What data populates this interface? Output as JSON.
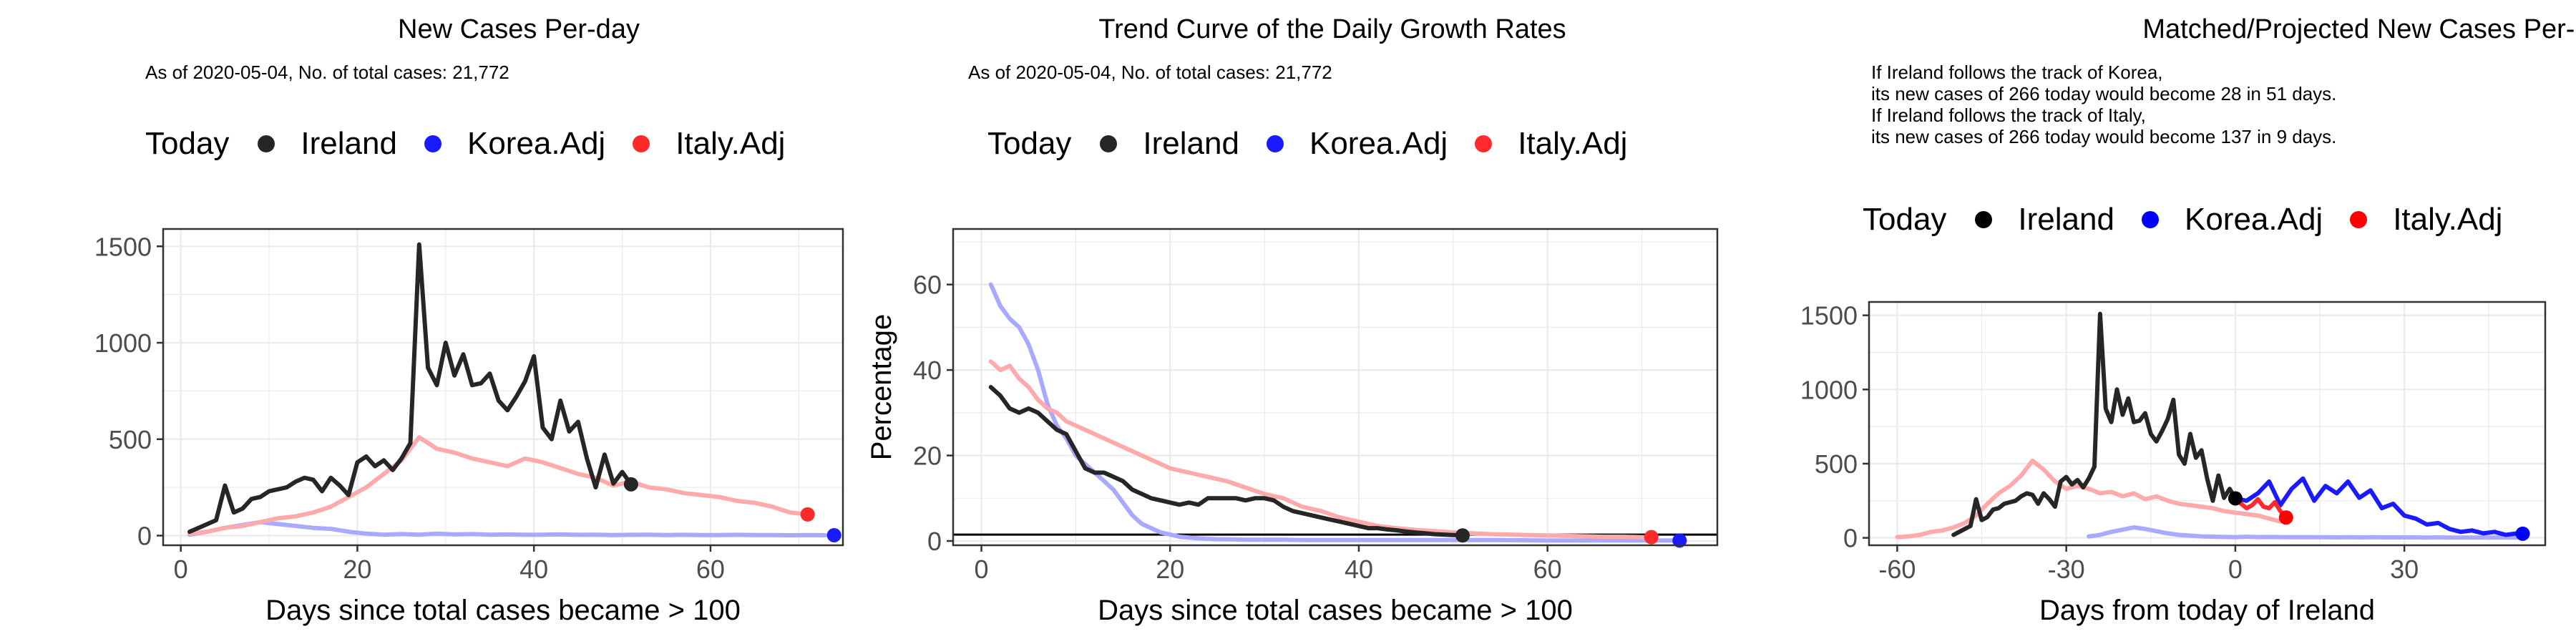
{
  "chart_data": [
    {
      "type": "line",
      "title": "New Cases Per-day",
      "subtitle": "As of 2020-05-04, No. of total cases: 21,772",
      "legend": {
        "title": "Today",
        "placement": "top",
        "items": [
          {
            "label": "Ireland",
            "color": "#262626"
          },
          {
            "label": "Korea.Adj",
            "color": "#1a1aff"
          },
          {
            "label": "Italy.Adj",
            "color": "#ff2a2a"
          }
        ]
      },
      "xlabel": "Days since total cases became > 100",
      "ylabel": "",
      "xlim": [
        -2,
        75
      ],
      "ylim": [
        -50,
        1590
      ],
      "xticks": [
        0,
        20,
        40,
        60
      ],
      "yticks": [
        0,
        500,
        1000,
        1500
      ],
      "grid": true,
      "series": [
        {
          "name": "Korea.Adj",
          "color": "#a9a9ff",
          "x": [
            1,
            3,
            5,
            7,
            9,
            11,
            13,
            15,
            17,
            19,
            21,
            23,
            25,
            27,
            29,
            31,
            33,
            35,
            37,
            39,
            41,
            43,
            45,
            47,
            49,
            51,
            53,
            55,
            57,
            59,
            61,
            63,
            65,
            67,
            69,
            71,
            73
          ],
          "y": [
            5,
            20,
            40,
            55,
            70,
            60,
            50,
            40,
            35,
            20,
            10,
            5,
            8,
            5,
            10,
            6,
            8,
            5,
            6,
            4,
            5,
            6,
            4,
            5,
            3,
            4,
            5,
            3,
            4,
            3,
            3,
            4,
            3,
            3,
            2,
            3,
            2
          ]
        },
        {
          "name": "Italy.Adj",
          "color": "#ffaaaa",
          "x": [
            1,
            3,
            5,
            7,
            9,
            11,
            13,
            15,
            17,
            19,
            21,
            23,
            25,
            27,
            29,
            31,
            33,
            35,
            37,
            39,
            41,
            43,
            45,
            47,
            49,
            51,
            53,
            55,
            57,
            59,
            61,
            63,
            65,
            67,
            69,
            71
          ],
          "y": [
            10,
            20,
            40,
            50,
            70,
            90,
            100,
            120,
            150,
            200,
            250,
            320,
            390,
            510,
            450,
            430,
            400,
            380,
            360,
            400,
            380,
            350,
            320,
            300,
            260,
            280,
            250,
            240,
            220,
            210,
            200,
            180,
            170,
            150,
            120,
            110
          ]
        },
        {
          "name": "Ireland",
          "color": "#262626",
          "x": [
            1,
            2,
            3,
            4,
            5,
            6,
            7,
            8,
            9,
            10,
            11,
            12,
            13,
            14,
            15,
            16,
            17,
            18,
            19,
            20,
            21,
            22,
            23,
            24,
            25,
            26,
            27,
            28,
            29,
            30,
            31,
            32,
            33,
            34,
            35,
            36,
            37,
            38,
            39,
            40,
            41,
            42,
            43,
            44,
            45,
            46,
            47,
            48,
            49,
            50,
            51
          ],
          "y": [
            20,
            40,
            60,
            80,
            260,
            120,
            140,
            190,
            200,
            230,
            240,
            250,
            280,
            300,
            290,
            230,
            300,
            260,
            210,
            380,
            410,
            360,
            390,
            340,
            400,
            480,
            1510,
            870,
            780,
            1000,
            830,
            940,
            780,
            790,
            840,
            700,
            650,
            720,
            800,
            930,
            560,
            500,
            700,
            540,
            590,
            400,
            250,
            420,
            270,
            330,
            266
          ]
        }
      ],
      "today_points": [
        {
          "name": "Ireland",
          "x": 51,
          "y": 266,
          "color": "#262626"
        },
        {
          "name": "Korea.Adj",
          "x": 74,
          "y": 2,
          "color": "#1a1aff"
        },
        {
          "name": "Italy.Adj",
          "x": 71,
          "y": 110,
          "color": "#ff2a2a"
        }
      ]
    },
    {
      "type": "line",
      "title": "Trend Curve of the Daily Growth Rates",
      "subtitle": "As of 2020-05-04, No. of total cases: 21,772",
      "legend": {
        "title": "Today",
        "placement": "top",
        "items": [
          {
            "label": "Ireland",
            "color": "#262626"
          },
          {
            "label": "Korea.Adj",
            "color": "#1a1aff"
          },
          {
            "label": "Italy.Adj",
            "color": "#ff2a2a"
          }
        ]
      },
      "xlabel": "Days since total cases became > 100",
      "ylabel": "Percentage",
      "xlim": [
        -3,
        78
      ],
      "ylim": [
        -1,
        73
      ],
      "xticks": [
        0,
        20,
        40,
        60
      ],
      "yticks": [
        0,
        20,
        40,
        60
      ],
      "grid": true,
      "hline": 1.5,
      "series": [
        {
          "name": "Korea.Adj",
          "color": "#a9a9ff",
          "x": [
            1,
            2,
            3,
            4,
            5,
            6,
            7,
            8,
            9,
            10,
            11,
            12,
            13,
            14,
            15,
            16,
            17,
            18,
            19,
            20,
            21,
            22,
            23,
            24,
            25,
            26,
            28,
            30,
            32,
            34,
            36,
            38,
            40,
            42,
            44,
            46,
            48,
            50,
            55,
            60,
            65,
            70,
            74
          ],
          "y": [
            60,
            55,
            52,
            50,
            46,
            40,
            32,
            27,
            24,
            20,
            18,
            16,
            14,
            12,
            9,
            6,
            4,
            3,
            2,
            1.5,
            1,
            0.8,
            0.6,
            0.5,
            0.4,
            0.4,
            0.3,
            0.3,
            0.3,
            0.2,
            0.2,
            0.2,
            0.2,
            0.2,
            0.2,
            0.2,
            0.2,
            0.2,
            0.2,
            0.1,
            0.1,
            0.1,
            0.1
          ]
        },
        {
          "name": "Italy.Adj",
          "color": "#ffaaaa",
          "x": [
            1,
            2,
            3,
            4,
            5,
            6,
            7,
            8,
            9,
            10,
            11,
            12,
            13,
            14,
            15,
            16,
            17,
            18,
            19,
            20,
            22,
            24,
            26,
            28,
            30,
            32,
            34,
            36,
            38,
            40,
            42,
            44,
            46,
            48,
            50,
            52,
            54,
            56,
            58,
            60,
            62,
            64,
            66,
            68,
            70,
            71
          ],
          "y": [
            42,
            40,
            41,
            38,
            36,
            33,
            31,
            30,
            28,
            27,
            26,
            25,
            24,
            23,
            22,
            21,
            20,
            19,
            18,
            17,
            16,
            15,
            14,
            12.5,
            11,
            10,
            8,
            7,
            5.5,
            4.5,
            3.5,
            3,
            2.6,
            2.3,
            2,
            1.8,
            1.6,
            1.5,
            1.4,
            1.3,
            1.2,
            1.1,
            1,
            1,
            0.9,
            0.9
          ]
        },
        {
          "name": "Ireland",
          "color": "#262626",
          "x": [
            1,
            2,
            3,
            4,
            5,
            6,
            7,
            8,
            9,
            10,
            11,
            12,
            13,
            14,
            15,
            16,
            17,
            18,
            19,
            20,
            21,
            22,
            23,
            24,
            25,
            26,
            27,
            28,
            29,
            30,
            31,
            32,
            33,
            34,
            35,
            36,
            37,
            38,
            39,
            40,
            41,
            42,
            43,
            44,
            45,
            46,
            47,
            48,
            49,
            50,
            51
          ],
          "y": [
            36,
            34,
            31,
            30,
            31,
            30,
            28,
            26,
            25,
            21,
            17,
            16,
            16,
            15,
            14,
            12,
            11,
            10,
            9.5,
            9,
            8.5,
            9,
            8.5,
            10,
            10,
            10,
            10,
            9.5,
            10,
            10,
            9.5,
            8,
            7,
            6.5,
            6,
            5.5,
            5,
            4.5,
            4,
            3.5,
            3,
            3,
            2.7,
            2.5,
            2.2,
            2,
            1.8,
            1.6,
            1.5,
            1.4,
            1.3
          ]
        }
      ],
      "today_points": [
        {
          "name": "Ireland",
          "x": 51,
          "y": 1.3,
          "color": "#262626"
        },
        {
          "name": "Korea.Adj",
          "x": 74,
          "y": 0.1,
          "color": "#1a1aff"
        },
        {
          "name": "Italy.Adj",
          "x": 71,
          "y": 0.9,
          "color": "#ff2a2a"
        }
      ]
    },
    {
      "type": "line",
      "title": "Matched/Projected New Cases Per-day",
      "subtitle": "If Ireland follows the track of Korea,\nits new cases of 266 today would become 28 in 51 days.\nIf Ireland follows the track of Italy,\nits new cases of 266 today would become 137 in 9 days.",
      "legend": {
        "title": "Today",
        "placement": "top",
        "items": [
          {
            "label": "Ireland",
            "color": "#000000"
          },
          {
            "label": "Korea.Adj",
            "color": "#0000ff"
          },
          {
            "label": "Italy.Adj",
            "color": "#ff0000"
          }
        ]
      },
      "xlabel": "Days from today of Ireland",
      "ylabel": "",
      "xlim": [
        -65,
        55
      ],
      "ylim": [
        -50,
        1590
      ],
      "xticks": [
        -60,
        -30,
        0,
        30
      ],
      "yticks": [
        0,
        500,
        1000,
        1500
      ],
      "grid": true,
      "series": [
        {
          "name": "Korea.Adj (history)",
          "color": "#a9a9ff",
          "x": [
            -26,
            -24,
            -22,
            -20,
            -18,
            -16,
            -14,
            -12,
            -10,
            -8,
            -6,
            -4,
            -2,
            0,
            2,
            4,
            6,
            8,
            10,
            12,
            14,
            16,
            18,
            20,
            22,
            24,
            26,
            28,
            30,
            32,
            34,
            36,
            38,
            40,
            42,
            44,
            46,
            48,
            50
          ],
          "y": [
            10,
            20,
            40,
            55,
            70,
            60,
            45,
            30,
            20,
            15,
            10,
            8,
            6,
            5,
            8,
            5,
            6,
            5,
            4,
            5,
            4,
            4,
            3,
            4,
            3,
            4,
            3,
            3,
            3,
            3,
            2,
            3,
            2,
            2,
            2,
            2,
            2,
            2,
            2
          ]
        },
        {
          "name": "Italy.Adj (history)",
          "color": "#ffaaaa",
          "x": [
            -60,
            -58,
            -56,
            -54,
            -52,
            -50,
            -48,
            -46,
            -44,
            -42,
            -40,
            -38,
            -36,
            -34,
            -32,
            -30,
            -28,
            -26,
            -24,
            -22,
            -20,
            -18,
            -16,
            -14,
            -12,
            -10,
            -8,
            -6,
            -4,
            -2,
            0,
            2,
            4,
            6,
            8
          ],
          "y": [
            5,
            10,
            20,
            40,
            50,
            70,
            100,
            150,
            230,
            300,
            350,
            420,
            520,
            460,
            380,
            330,
            350,
            330,
            300,
            310,
            280,
            300,
            260,
            280,
            250,
            230,
            220,
            210,
            200,
            180,
            170,
            160,
            150,
            130,
            110
          ]
        },
        {
          "name": "Ireland",
          "color": "#262626",
          "x": [
            -50,
            -49,
            -48,
            -47,
            -46,
            -45,
            -44,
            -43,
            -42,
            -41,
            -40,
            -39,
            -38,
            -37,
            -36,
            -35,
            -34,
            -33,
            -32,
            -31,
            -30,
            -29,
            -28,
            -27,
            -26,
            -25,
            -24,
            -23,
            -22,
            -21,
            -20,
            -19,
            -18,
            -17,
            -16,
            -15,
            -14,
            -13,
            -12,
            -11,
            -10,
            -9,
            -8,
            -7,
            -6,
            -5,
            -4,
            -3,
            -2,
            -1,
            0
          ],
          "y": [
            20,
            40,
            60,
            80,
            260,
            120,
            140,
            190,
            200,
            230,
            240,
            250,
            280,
            300,
            290,
            230,
            300,
            260,
            210,
            380,
            410,
            360,
            390,
            340,
            400,
            480,
            1510,
            870,
            780,
            1000,
            830,
            940,
            780,
            790,
            840,
            700,
            650,
            720,
            800,
            930,
            560,
            500,
            700,
            540,
            590,
            400,
            250,
            420,
            270,
            330,
            266
          ]
        },
        {
          "name": "Korea.Adj",
          "color": "#1a1aff",
          "x": [
            0,
            2,
            4,
            6,
            8,
            10,
            12,
            14,
            16,
            18,
            20,
            22,
            24,
            26,
            28,
            30,
            32,
            34,
            36,
            38,
            40,
            42,
            44,
            46,
            48,
            50,
            51
          ],
          "y": [
            266,
            250,
            300,
            380,
            220,
            330,
            400,
            250,
            350,
            300,
            380,
            270,
            320,
            200,
            230,
            150,
            130,
            90,
            100,
            60,
            40,
            50,
            30,
            40,
            20,
            30,
            28
          ]
        },
        {
          "name": "Italy.Adj",
          "color": "#ff2a2a",
          "x": [
            0,
            1,
            2,
            3,
            4,
            5,
            6,
            7,
            8,
            9
          ],
          "y": [
            266,
            230,
            200,
            220,
            260,
            210,
            200,
            240,
            180,
            137
          ]
        }
      ],
      "today_points": [
        {
          "name": "Ireland",
          "x": 0,
          "y": 266,
          "color": "#000000"
        },
        {
          "name": "Korea.Adj",
          "x": 51,
          "y": 28,
          "color": "#0000ff"
        },
        {
          "name": "Italy.Adj",
          "x": 9,
          "y": 137,
          "color": "#ff0000"
        }
      ]
    }
  ]
}
